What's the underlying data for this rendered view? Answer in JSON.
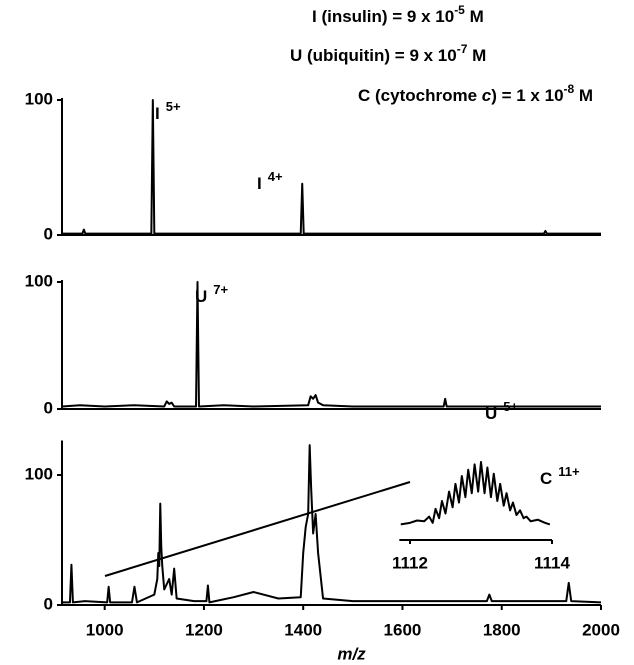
{
  "header": {
    "lines": [
      [
        {
          "text": "I (insulin) = 9 x 10"
        },
        {
          "text": "-5",
          "sup": true
        },
        {
          "text": " M"
        }
      ],
      [
        {
          "text": "U (ubiquitin) = 9 x 10"
        },
        {
          "text": "-7",
          "sup": true
        },
        {
          "text": " M"
        }
      ],
      [
        {
          "text": "C (cytochrome "
        },
        {
          "text": "c",
          "italic": true
        },
        {
          "text": ") = 1 x 10"
        },
        {
          "text": "-8",
          "sup": true
        },
        {
          "text": " M"
        }
      ]
    ]
  },
  "chart_data": [
    {
      "type": "line",
      "xlim": [
        914,
        2000
      ],
      "ylim": [
        0,
        100
      ],
      "yticks": [
        0,
        100
      ],
      "color": "#000000",
      "x": [
        914,
        955,
        958,
        961,
        1094,
        1097,
        1100,
        1395,
        1398,
        1401,
        1885,
        1888,
        1891,
        2000
      ],
      "values": [
        1,
        1,
        4,
        1,
        1,
        100,
        1,
        1,
        38,
        1,
        1,
        3,
        1,
        1
      ],
      "peak_labels": [
        {
          "text": "I",
          "charge": "5+"
        },
        {
          "text": "I",
          "charge": "4+"
        }
      ]
    },
    {
      "type": "line",
      "xlim": [
        914,
        2000
      ],
      "ylim": [
        0,
        100
      ],
      "yticks": [
        0,
        100
      ],
      "color": "#000000",
      "x": [
        914,
        950,
        1000,
        1060,
        1120,
        1125,
        1130,
        1135,
        1140,
        1184,
        1187,
        1190,
        1240,
        1300,
        1410,
        1415,
        1420,
        1425,
        1430,
        1440,
        1500,
        1600,
        1683,
        1686,
        1689,
        1800,
        1900,
        2000
      ],
      "values": [
        2,
        3,
        2,
        3,
        2,
        6,
        4,
        5,
        2,
        2,
        100,
        2,
        3,
        2,
        3,
        10,
        8,
        11,
        5,
        3,
        2,
        2,
        2,
        8,
        2,
        2,
        2,
        2
      ],
      "peak_labels": [
        {
          "text": "U",
          "charge": "7+"
        },
        {
          "text": "U",
          "charge": "5+"
        }
      ]
    },
    {
      "type": "line",
      "xlim": [
        914,
        2000
      ],
      "ylim": [
        0,
        125
      ],
      "yticks": [
        0,
        100
      ],
      "color": "#000000",
      "xticks": [
        1000,
        1200,
        1400,
        1600,
        1800,
        2000
      ],
      "xlabel": "m/z",
      "x": [
        914,
        930,
        933,
        936,
        960,
        1005,
        1008,
        1011,
        1055,
        1060,
        1065,
        1100,
        1106,
        1108,
        1110,
        1112,
        1114,
        1116,
        1120,
        1130,
        1135,
        1140,
        1145,
        1180,
        1205,
        1208,
        1211,
        1260,
        1300,
        1350,
        1395,
        1400,
        1405,
        1410,
        1413,
        1416,
        1420,
        1425,
        1430,
        1440,
        1500,
        1600,
        1700,
        1770,
        1775,
        1780,
        1900,
        1930,
        1935,
        1940,
        2000
      ],
      "values": [
        2,
        2,
        31,
        2,
        3,
        2,
        14,
        2,
        2,
        14,
        2,
        8,
        20,
        40,
        30,
        78,
        45,
        30,
        12,
        20,
        8,
        28,
        5,
        3,
        3,
        15,
        2,
        6,
        10,
        5,
        6,
        40,
        60,
        70,
        123,
        90,
        55,
        70,
        40,
        5,
        3,
        3,
        3,
        3,
        8,
        3,
        3,
        3,
        17,
        3,
        2
      ],
      "peak_labels": [
        {
          "text": "C",
          "charge": "11+"
        }
      ]
    },
    {
      "type": "inset",
      "xlim": [
        1111.85,
        1114
      ],
      "ylim": [
        0,
        100
      ],
      "xticks": [
        1112,
        1114
      ],
      "color": "#000000",
      "x": [
        1111.87,
        1112.0,
        1112.1,
        1112.2,
        1112.27,
        1112.32,
        1112.36,
        1112.41,
        1112.45,
        1112.5,
        1112.55,
        1112.6,
        1112.64,
        1112.69,
        1112.73,
        1112.78,
        1112.82,
        1112.87,
        1112.91,
        1112.96,
        1113.0,
        1113.05,
        1113.09,
        1113.14,
        1113.18,
        1113.23,
        1113.27,
        1113.32,
        1113.36,
        1113.41,
        1113.45,
        1113.5,
        1113.55,
        1113.6,
        1113.64,
        1113.7,
        1113.8,
        1113.9,
        1113.97
      ],
      "values": [
        20,
        22,
        25,
        24,
        30,
        22,
        40,
        28,
        50,
        34,
        62,
        42,
        72,
        48,
        82,
        55,
        90,
        60,
        97,
        62,
        100,
        60,
        93,
        55,
        85,
        50,
        72,
        44,
        60,
        38,
        48,
        32,
        38,
        28,
        30,
        24,
        26,
        22,
        20
      ]
    }
  ]
}
